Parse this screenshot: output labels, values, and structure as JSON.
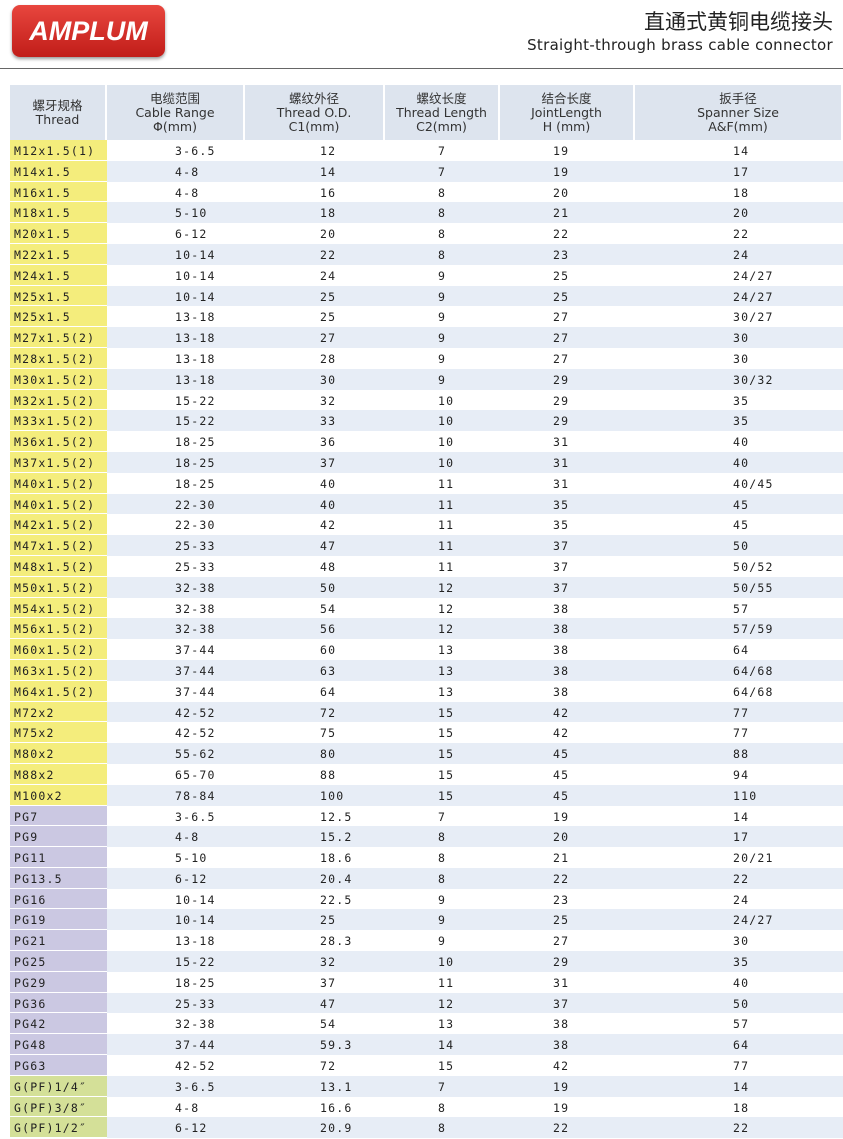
{
  "header": {
    "logo": "AMPLUM",
    "title": "直通式黄铜电缆接头",
    "subtitle": "Straight-through brass cable connector"
  },
  "table": {
    "columns": [
      [
        "螺牙规格",
        "Thread"
      ],
      [
        "电缆范围",
        "Cable Range",
        "Φ(mm)"
      ],
      [
        "螺纹外径",
        "Thread O.D.",
        "C1(mm)"
      ],
      [
        "螺纹长度",
        "Thread Length",
        "C2(mm)"
      ],
      [
        "结合长度",
        "JointLength",
        "H (mm)"
      ],
      [
        "扳手径",
        "Spanner Size",
        "A&F(mm)"
      ]
    ],
    "thread_colors": {
      "M": "#f4ed7c",
      "PG": "#cbc8e2",
      "G": "#d4e098"
    },
    "rows": [
      [
        "M12x1.5(1)",
        "3-6.5",
        "12",
        "7",
        "19",
        "14"
      ],
      [
        "M14x1.5",
        "4-8",
        "14",
        "7",
        "19",
        "17"
      ],
      [
        "M16x1.5",
        "4-8",
        "16",
        "8",
        "20",
        "18"
      ],
      [
        "M18x1.5",
        "5-10",
        "18",
        "8",
        "21",
        "20"
      ],
      [
        "M20x1.5",
        "6-12",
        "20",
        "8",
        "22",
        "22"
      ],
      [
        "M22x1.5",
        "10-14",
        "22",
        "8",
        "23",
        "24"
      ],
      [
        "M24x1.5",
        "10-14",
        "24",
        "9",
        "25",
        "24/27"
      ],
      [
        "M25x1.5",
        "10-14",
        "25",
        "9",
        "25",
        "24/27"
      ],
      [
        "M25x1.5",
        "13-18",
        "25",
        "9",
        "27",
        "30/27"
      ],
      [
        "M27x1.5(2)",
        "13-18",
        "27",
        "9",
        "27",
        "30"
      ],
      [
        "M28x1.5(2)",
        "13-18",
        "28",
        "9",
        "27",
        "30"
      ],
      [
        "M30x1.5(2)",
        "13-18",
        "30",
        "9",
        "29",
        "30/32"
      ],
      [
        "M32x1.5(2)",
        "15-22",
        "32",
        "10",
        "29",
        "35"
      ],
      [
        "M33x1.5(2)",
        "15-22",
        "33",
        "10",
        "29",
        "35"
      ],
      [
        "M36x1.5(2)",
        "18-25",
        "36",
        "10",
        "31",
        "40"
      ],
      [
        "M37x1.5(2)",
        "18-25",
        "37",
        "10",
        "31",
        "40"
      ],
      [
        "M40x1.5(2)",
        "18-25",
        "40",
        "11",
        "31",
        "40/45"
      ],
      [
        "M40x1.5(2)",
        "22-30",
        "40",
        "11",
        "35",
        "45"
      ],
      [
        "M42x1.5(2)",
        "22-30",
        "42",
        "11",
        "35",
        "45"
      ],
      [
        "M47x1.5(2)",
        "25-33",
        "47",
        "11",
        "37",
        "50"
      ],
      [
        "M48x1.5(2)",
        "25-33",
        "48",
        "11",
        "37",
        "50/52"
      ],
      [
        "M50x1.5(2)",
        "32-38",
        "50",
        "12",
        "37",
        "50/55"
      ],
      [
        "M54x1.5(2)",
        "32-38",
        "54",
        "12",
        "38",
        "57"
      ],
      [
        "M56x1.5(2)",
        "32-38",
        "56",
        "12",
        "38",
        "57/59"
      ],
      [
        "M60x1.5(2)",
        "37-44",
        "60",
        "13",
        "38",
        "64"
      ],
      [
        "M63x1.5(2)",
        "37-44",
        "63",
        "13",
        "38",
        "64/68"
      ],
      [
        "M64x1.5(2)",
        "37-44",
        "64",
        "13",
        "38",
        "64/68"
      ],
      [
        "M72x2",
        "42-52",
        "72",
        "15",
        "42",
        "77"
      ],
      [
        "M75x2",
        "42-52",
        "75",
        "15",
        "42",
        "77"
      ],
      [
        "M80x2",
        "55-62",
        "80",
        "15",
        "45",
        "88"
      ],
      [
        "M88x2",
        "65-70",
        "88",
        "15",
        "45",
        "94"
      ],
      [
        "M100x2",
        "78-84",
        "100",
        "15",
        "45",
        "110"
      ],
      [
        "PG7",
        "3-6.5",
        "12.5",
        "7",
        "19",
        "14"
      ],
      [
        "PG9",
        "4-8",
        "15.2",
        "8",
        "20",
        "17"
      ],
      [
        "PG11",
        "5-10",
        "18.6",
        "8",
        "21",
        "20/21"
      ],
      [
        "PG13.5",
        "6-12",
        "20.4",
        "8",
        "22",
        "22"
      ],
      [
        "PG16",
        "10-14",
        "22.5",
        "9",
        "23",
        "24"
      ],
      [
        "PG19",
        "10-14",
        "25",
        "9",
        "25",
        "24/27"
      ],
      [
        "PG21",
        "13-18",
        "28.3",
        "9",
        "27",
        "30"
      ],
      [
        "PG25",
        "15-22",
        "32",
        "10",
        "29",
        "35"
      ],
      [
        "PG29",
        "18-25",
        "37",
        "11",
        "31",
        "40"
      ],
      [
        "PG36",
        "25-33",
        "47",
        "12",
        "37",
        "50"
      ],
      [
        "PG42",
        "32-38",
        "54",
        "13",
        "38",
        "57"
      ],
      [
        "PG48",
        "37-44",
        "59.3",
        "14",
        "38",
        "64"
      ],
      [
        "PG63",
        "42-52",
        "72",
        "15",
        "42",
        "77"
      ],
      [
        "G(PF)1/4″",
        "3-6.5",
        "13.1",
        "7",
        "19",
        "14"
      ],
      [
        "G(PF)3/8″",
        "4-8",
        "16.6",
        "8",
        "19",
        "18"
      ],
      [
        "G(PF)1/2″",
        "6-12",
        "20.9",
        "8",
        "22",
        "22"
      ]
    ]
  }
}
